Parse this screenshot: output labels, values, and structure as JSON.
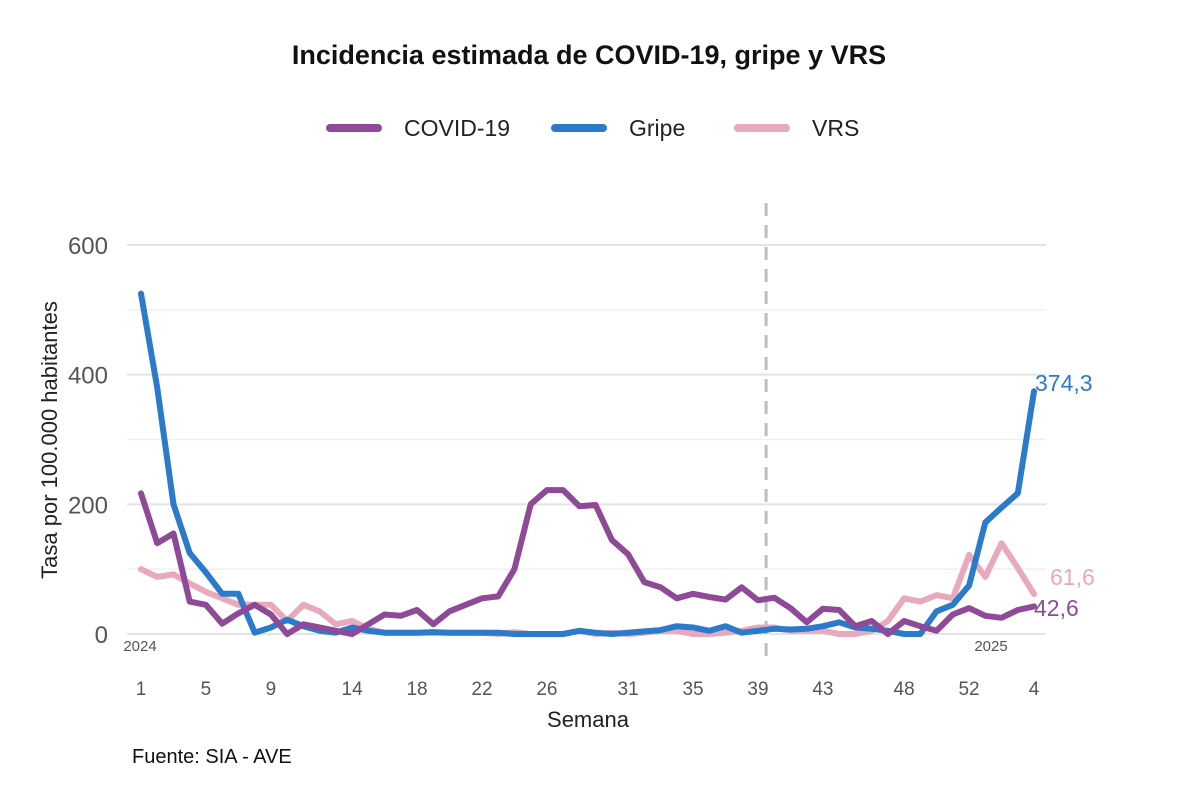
{
  "chart_data": {
    "type": "line",
    "title": "Incidencia estimada de COVID-19, gripe y VRS",
    "xlabel": "Semana",
    "ylabel": "Tasa por 100.000 habitantes",
    "ylim": [
      0,
      600
    ],
    "yticks": [
      0,
      200,
      400,
      600
    ],
    "x_tick_labels": [
      "1",
      "5",
      "9",
      "14",
      "18",
      "22",
      "26",
      "31",
      "35",
      "39",
      "43",
      "48",
      "52",
      "4"
    ],
    "season_divider_after_week": "39",
    "year_labels": [
      "2024",
      "2025"
    ],
    "source": "Fuente: SIA - AVE",
    "legend_position": "top",
    "grid": true,
    "categories": [
      "1",
      "2",
      "3",
      "4",
      "5",
      "6",
      "7",
      "8",
      "9",
      "10",
      "11",
      "12",
      "13",
      "14",
      "15",
      "16",
      "17",
      "18",
      "19",
      "20",
      "21",
      "22",
      "23",
      "24",
      "25",
      "26",
      "27",
      "28",
      "29",
      "30",
      "31",
      "32",
      "33",
      "34",
      "35",
      "36",
      "37",
      "38",
      "39",
      "40",
      "41",
      "42",
      "43",
      "44",
      "45",
      "46",
      "47",
      "48",
      "49",
      "50",
      "51",
      "52",
      "1",
      "2",
      "3",
      "4"
    ],
    "series": [
      {
        "name": "COVID-19",
        "color": "#8e4a97",
        "end_label": "42,6",
        "values": [
          217,
          140,
          155,
          50,
          45,
          16,
          32,
          45,
          30,
          0,
          15,
          10,
          5,
          0,
          15,
          30,
          28,
          37,
          15,
          35,
          45,
          55,
          58,
          100,
          200,
          222,
          222,
          197,
          199,
          145,
          123,
          80,
          72,
          55,
          62,
          57,
          53,
          72,
          52,
          56,
          40,
          18,
          39,
          37,
          12,
          20,
          0,
          20,
          12,
          5,
          30,
          40,
          28,
          25,
          37,
          42.6
        ]
      },
      {
        "name": "Gripe",
        "color": "#2b7bca",
        "end_label": "374,3",
        "values": [
          525,
          380,
          200,
          125,
          95,
          62,
          62,
          2,
          10,
          22,
          12,
          5,
          2,
          10,
          5,
          2,
          2,
          2,
          3,
          2,
          2,
          2,
          2,
          0,
          0,
          0,
          0,
          5,
          2,
          0,
          2,
          4,
          6,
          12,
          10,
          5,
          12,
          2,
          5,
          8,
          7,
          8,
          12,
          18,
          10,
          8,
          5,
          0,
          0,
          35,
          45,
          75,
          172,
          195,
          217,
          374.3
        ]
      },
      {
        "name": "VRS",
        "color": "#e8a9bd",
        "end_label": "61,6",
        "values": [
          100,
          88,
          92,
          78,
          65,
          55,
          45,
          45,
          45,
          20,
          45,
          35,
          15,
          20,
          8,
          2,
          2,
          2,
          2,
          2,
          2,
          2,
          0,
          3,
          0,
          0,
          0,
          5,
          0,
          2,
          0,
          2,
          5,
          5,
          0,
          0,
          2,
          5,
          10,
          10,
          5,
          5,
          5,
          0,
          0,
          5,
          20,
          55,
          50,
          60,
          55,
          122,
          88,
          140,
          102,
          61.6
        ]
      }
    ]
  }
}
